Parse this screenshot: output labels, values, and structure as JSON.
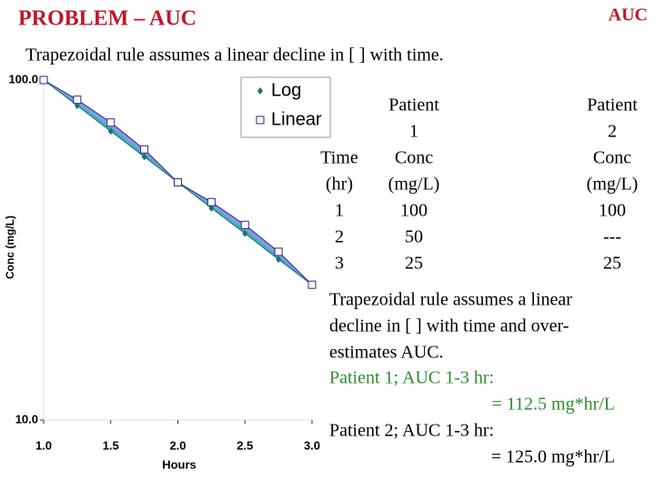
{
  "header": {
    "title": "PROBLEM – AUC",
    "tag": "AUC"
  },
  "subtitle": "Trapezoidal rule assumes a linear decline in [ ] with time.",
  "chart_data": {
    "type": "line",
    "x_label": "Hours",
    "y_label": "Conc (mg/L)",
    "x": [
      1.0,
      1.25,
      1.5,
      1.75,
      2.0,
      2.25,
      2.5,
      2.75,
      3.0
    ],
    "series": [
      {
        "name": "Log",
        "color": "#1f6f70",
        "marker": "diamond",
        "values": [
          100,
          84.1,
          70.7,
          59.5,
          50,
          42.0,
          35.4,
          29.7,
          25
        ]
      },
      {
        "name": "Linear",
        "color": "#2a2a8a",
        "marker": "square",
        "values": [
          100,
          87.5,
          75,
          62.5,
          50,
          43.75,
          37.5,
          31.25,
          25
        ]
      }
    ],
    "fill_color": "#8c96f0",
    "band_color": "#3fb3b8",
    "xlim": [
      1.0,
      3.0
    ],
    "xticks": [
      {
        "value": 1.0,
        "label": "1.0"
      },
      {
        "value": 1.5,
        "label": "1.5"
      },
      {
        "value": 2.0,
        "label": "2.0"
      },
      {
        "value": 2.5,
        "label": "2.5"
      },
      {
        "value": 3.0,
        "label": "3.0"
      }
    ],
    "ylim": [
      10,
      100
    ],
    "log_y": true,
    "yticks": [
      {
        "value": 10,
        "label": "10.0"
      },
      {
        "value": 100,
        "label": "100.0"
      }
    ],
    "legend": "top-right"
  },
  "table": {
    "columns": [
      {
        "header": [
          "Time",
          "(hr)"
        ],
        "values": [
          1,
          2,
          3
        ]
      },
      {
        "header": [
          "Patient",
          "1",
          "Conc",
          "(mg/L)"
        ],
        "values": [
          100,
          50,
          25
        ]
      },
      {
        "header": [
          "Patient",
          "2",
          "Conc",
          "(mg/L)"
        ],
        "values": [
          100,
          "---",
          25
        ]
      }
    ]
  },
  "notes": {
    "lines": [
      "Trapezoidal rule assumes a linear",
      "decline in [ ] with time and over-",
      "estimates AUC."
    ],
    "results": [
      {
        "label": "Patient 1; AUC 1-3 hr:",
        "value": "= 112.5 mg*hr/L",
        "color": "#2e8b2e"
      },
      {
        "label": "Patient 2; AUC 1-3 hr:",
        "value": "= 125.0 mg*hr/L",
        "color": "#000000"
      }
    ]
  }
}
